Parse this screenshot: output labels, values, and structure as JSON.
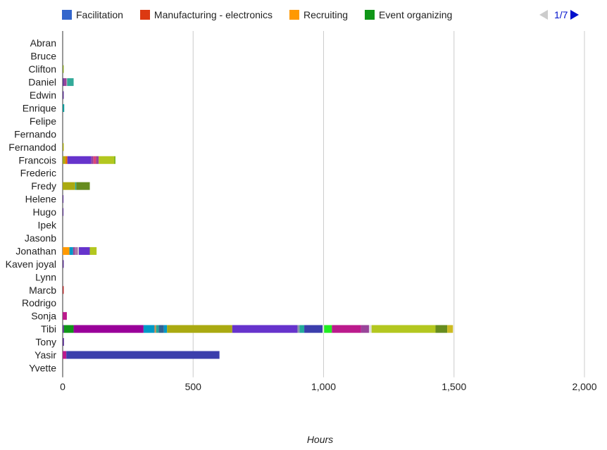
{
  "legend": {
    "items": [
      {
        "label": "Facilitation",
        "color": "#3366cc"
      },
      {
        "label": "Manufacturing - electronics",
        "color": "#dc3912"
      },
      {
        "label": "Recruiting",
        "color": "#ff9900"
      },
      {
        "label": "Event organizing",
        "color": "#109618"
      }
    ]
  },
  "pager": {
    "text": "1/7"
  },
  "chart_data": {
    "type": "bar",
    "orientation": "horizontal",
    "stacked": true,
    "xlabel": "Hours",
    "xlim": [
      0,
      2000
    ],
    "xticks": [
      0,
      500,
      1000,
      1500,
      2000
    ],
    "xtick_labels": [
      "0",
      "500",
      "1,000",
      "1,500",
      "2,000"
    ],
    "grid": true,
    "legend_position": "top",
    "categories": [
      "Abran",
      "Bruce",
      "Clifton",
      "Daniel",
      "Edwin",
      "Enrique",
      "Felipe",
      "Fernando",
      "Fernandod",
      "Francois",
      "Frederic",
      "Fredy",
      "Helene",
      "Hugo",
      "Ipek",
      "Jasonb",
      "Jonathan",
      "Kaven joyal",
      "Lynn",
      "Marcb",
      "Rodrigo",
      "Sonja",
      "Tibi",
      "Tony",
      "Yasir",
      "Yvette"
    ],
    "stacks": {
      "Clifton": [
        {
          "v": 4,
          "c": "#8aa52a"
        }
      ],
      "Daniel": [
        {
          "v": 5,
          "c": "#5c3292"
        },
        {
          "v": 10,
          "c": "#994499"
        },
        {
          "v": 2,
          "c": "#dddddd"
        },
        {
          "v": 25,
          "c": "#33aa99"
        }
      ],
      "Edwin": [
        {
          "v": 4,
          "c": "#5c3292"
        }
      ],
      "Enrique": [
        {
          "v": 6,
          "c": "#109999"
        }
      ],
      "Fernandod": [
        {
          "v": 4,
          "c": "#aaaa11"
        }
      ],
      "Francois": [
        {
          "v": 10,
          "c": "#aaaa11"
        },
        {
          "v": 8,
          "c": "#e67300"
        },
        {
          "v": 92,
          "c": "#6633cc"
        },
        {
          "v": 8,
          "c": "#994499"
        },
        {
          "v": 10,
          "c": "#dd4477"
        },
        {
          "v": 10,
          "c": "#994499"
        },
        {
          "v": 60,
          "c": "#b3c71f"
        },
        {
          "v": 4,
          "c": "#66aa00"
        }
      ],
      "Fredy": [
        {
          "v": 48,
          "c": "#aaaa11"
        },
        {
          "v": 4,
          "c": "#22aa99"
        },
        {
          "v": 52,
          "c": "#668c1e"
        }
      ],
      "Helene": [
        {
          "v": 3,
          "c": "#5c3292"
        }
      ],
      "Hugo": [
        {
          "v": 3,
          "c": "#5c3292"
        }
      ],
      "Jonathan": [
        {
          "v": 26,
          "c": "#ff9900"
        },
        {
          "v": 14,
          "c": "#0099c6"
        },
        {
          "v": 6,
          "c": "#994499"
        },
        {
          "v": 12,
          "c": "#aa77aa"
        },
        {
          "v": 4,
          "c": "#dddddd"
        },
        {
          "v": 42,
          "c": "#6633cc"
        },
        {
          "v": 26,
          "c": "#b3c71f"
        }
      ],
      "Kaven joyal": [
        {
          "v": 4,
          "c": "#5c3292"
        }
      ],
      "Marcb": [
        {
          "v": 4,
          "c": "#b82e2e"
        }
      ],
      "Sonja": [
        {
          "v": 16,
          "c": "#bb1a8c"
        }
      ],
      "Tibi": [
        {
          "v": 5,
          "c": "#5c3292"
        },
        {
          "v": 37,
          "c": "#109618"
        },
        {
          "v": 268,
          "c": "#990099"
        },
        {
          "v": 42,
          "c": "#0099c6"
        },
        {
          "v": 6,
          "c": "#dd8844"
        },
        {
          "v": 10,
          "c": "#22aa99"
        },
        {
          "v": 20,
          "c": "#316395"
        },
        {
          "v": 12,
          "c": "#0099c6"
        },
        {
          "v": 250,
          "c": "#aaaa11"
        },
        {
          "v": 250,
          "c": "#6633cc"
        },
        {
          "v": 8,
          "c": "#8899aa"
        },
        {
          "v": 18,
          "c": "#22aa99"
        },
        {
          "v": 70,
          "c": "#3b3eac"
        },
        {
          "v": 6,
          "c": "#dddddd"
        },
        {
          "v": 30,
          "c": "#22ee22"
        },
        {
          "v": 112,
          "c": "#bb1a8c"
        },
        {
          "v": 30,
          "c": "#994499"
        },
        {
          "v": 10,
          "c": "#dddddd"
        },
        {
          "v": 245,
          "c": "#b3c71f"
        },
        {
          "v": 45,
          "c": "#668c1e"
        },
        {
          "v": 22,
          "c": "#ccbb22"
        }
      ],
      "Tony": [
        {
          "v": 5,
          "c": "#5c3292"
        }
      ],
      "Yasir": [
        {
          "v": 14,
          "c": "#bb1a8c"
        },
        {
          "v": 587,
          "c": "#3b3eac"
        }
      ]
    }
  }
}
